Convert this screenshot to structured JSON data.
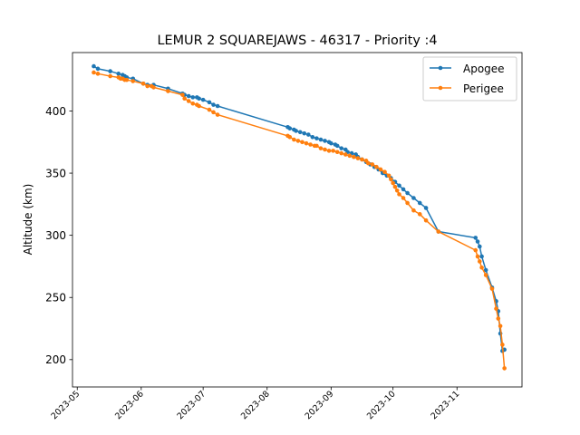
{
  "chart_data": {
    "type": "line",
    "title": "LEMUR 2 SQUAREJAWS - 46317 - Priority :4",
    "xlabel": "",
    "ylabel": "Altitude (km)",
    "x_axis": {
      "type": "date",
      "ticks": [
        {
          "label": "2023-05",
          "day": 0
        },
        {
          "label": "2023-06",
          "day": 31
        },
        {
          "label": "2023-07",
          "day": 61
        },
        {
          "label": "2023-08",
          "day": 92
        },
        {
          "label": "2023-09",
          "day": 123
        },
        {
          "label": "2023-10",
          "day": 153
        },
        {
          "label": "2023-11",
          "day": 184
        }
      ],
      "xlim_days": [
        -2.3,
        215.5
      ],
      "day_zero": "2023-05-01"
    },
    "y_axis": {
      "ticks": [
        200,
        250,
        300,
        350,
        400
      ],
      "ylim": [
        178,
        447
      ]
    },
    "legend": {
      "position": "top-right",
      "entries": [
        "Apogee",
        "Perigee"
      ]
    },
    "series": [
      {
        "name": "Apogee",
        "color": "#1f77b4",
        "x_days": [
          8,
          10,
          16,
          20,
          22,
          23,
          24,
          27,
          32,
          34,
          37,
          44,
          51,
          52,
          54,
          56,
          58,
          59,
          61,
          64,
          66,
          68,
          102,
          103,
          105,
          106,
          108,
          110,
          112,
          114,
          116,
          118,
          120,
          122,
          123,
          125,
          126,
          128,
          130,
          131,
          133,
          135,
          136,
          138,
          140,
          142,
          144,
          146,
          148,
          150,
          152,
          154,
          156,
          158,
          160,
          163,
          166,
          169,
          175,
          193,
          194,
          195,
          196,
          198,
          201,
          203,
          204,
          205,
          206,
          207
        ],
        "values": [
          436,
          434,
          432,
          430,
          429,
          428,
          427,
          426,
          422,
          421,
          421,
          418,
          414,
          413,
          412,
          411,
          411,
          410,
          409,
          407,
          405,
          404,
          387,
          386,
          385,
          384,
          383,
          382,
          381,
          379,
          378,
          377,
          376,
          375,
          374,
          373,
          372,
          370,
          369,
          367,
          366,
          365,
          363,
          361,
          359,
          357,
          355,
          353,
          350,
          348,
          346,
          343,
          340,
          337,
          334,
          330,
          326,
          322,
          303,
          298,
          295,
          291,
          283,
          272,
          258,
          247,
          239,
          221,
          207,
          208
        ]
      },
      {
        "name": "Perigee",
        "color": "#ff7f0e",
        "x_days": [
          8,
          10,
          16,
          20,
          21,
          22,
          23,
          24,
          27,
          32,
          34,
          36,
          37,
          44,
          51,
          52,
          54,
          56,
          58,
          59,
          64,
          66,
          68,
          102,
          103,
          105,
          107,
          109,
          111,
          113,
          115,
          116,
          118,
          120,
          122,
          124,
          126,
          128,
          130,
          132,
          134,
          136,
          138,
          140,
          141,
          143,
          145,
          147,
          149,
          151,
          152,
          153,
          154,
          155,
          156,
          158,
          160,
          163,
          166,
          169,
          175,
          193,
          194,
          195,
          196,
          198,
          201,
          203,
          204,
          205,
          206,
          207
        ],
        "values": [
          431,
          430,
          428,
          427,
          426,
          426,
          425,
          425,
          424,
          422,
          420,
          420,
          419,
          416,
          413,
          410,
          408,
          406,
          405,
          404,
          401,
          399,
          397,
          380,
          379,
          377,
          376,
          375,
          374,
          373,
          372,
          372,
          370,
          369,
          368,
          368,
          367,
          366,
          365,
          364,
          363,
          362,
          361,
          360,
          358,
          357,
          355,
          353,
          351,
          348,
          345,
          342,
          339,
          336,
          333,
          330,
          326,
          320,
          317,
          312,
          303,
          288,
          283,
          279,
          274,
          268,
          257,
          241,
          233,
          227,
          212,
          193
        ]
      }
    ]
  }
}
